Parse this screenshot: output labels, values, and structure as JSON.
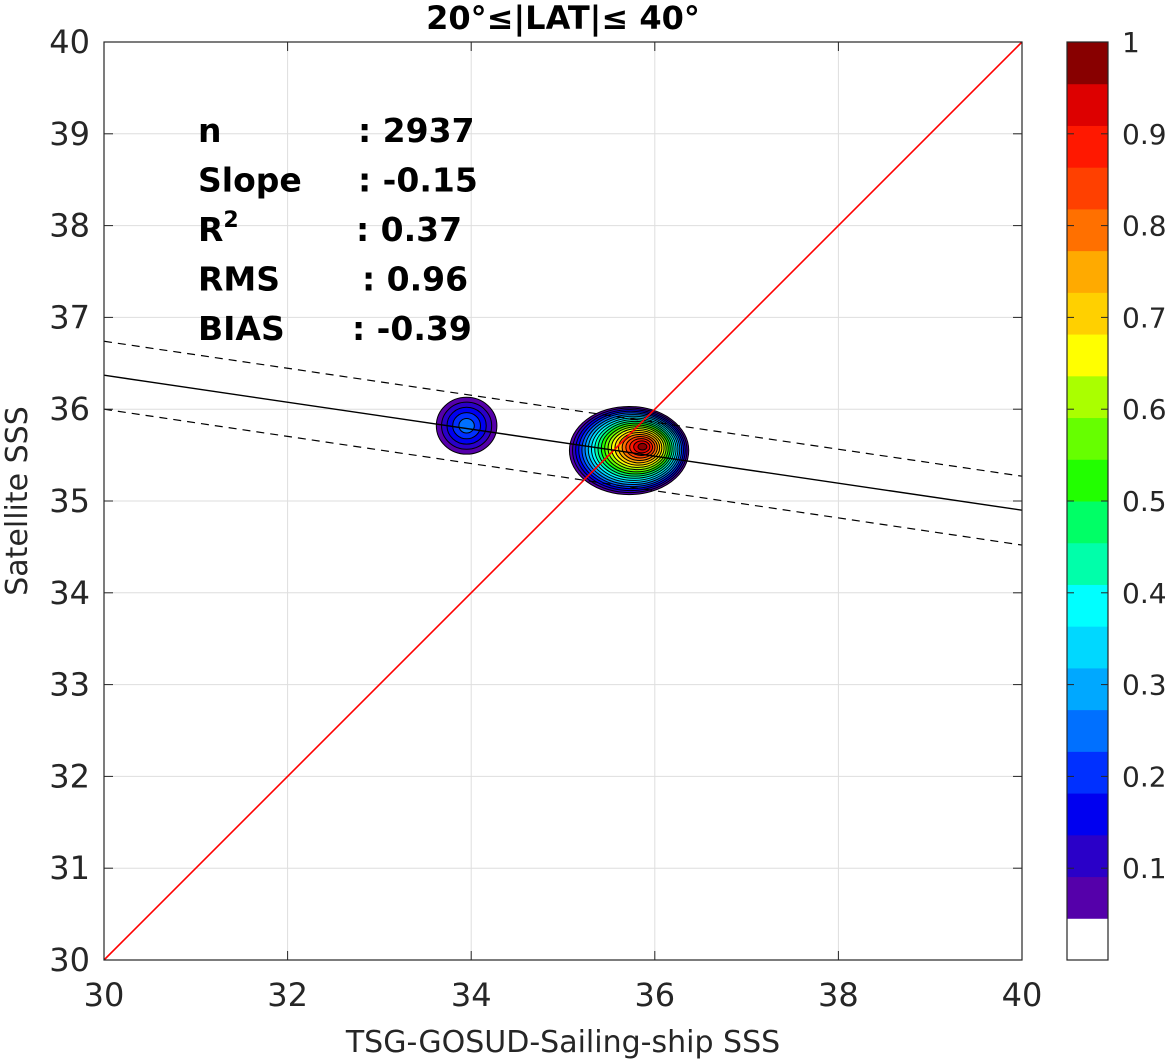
{
  "chart_data": {
    "type": "contour-density-scatter",
    "title": "20°≤|LAT|≤ 40°",
    "xlabel": "TSG-GOSUD-Sailing-ship SSS",
    "ylabel": "Satellite SSS",
    "xlim": [
      30,
      40
    ],
    "ylim": [
      30,
      40
    ],
    "xticks": [
      30,
      32,
      34,
      36,
      38,
      40
    ],
    "yticks": [
      30,
      31,
      32,
      33,
      34,
      35,
      36,
      37,
      38,
      39,
      40
    ],
    "grid": true,
    "stats": [
      {
        "label": "n",
        "value": ": 2937"
      },
      {
        "label": "Slope",
        "value": ": -0.15"
      },
      {
        "label": "R",
        "sup": "2",
        "value": ": 0.37"
      },
      {
        "label": "RMS",
        "value": ": 0.96"
      },
      {
        "label": "BIAS",
        "value": ": -0.39"
      }
    ],
    "identity_line": {
      "from": [
        30,
        30
      ],
      "to": [
        40,
        40
      ],
      "color": "#ff0000"
    },
    "fit_line": {
      "from": [
        30,
        36.37
      ],
      "to": [
        40,
        34.9
      ],
      "color": "#000000"
    },
    "fit_bounds": [
      {
        "from": [
          30,
          36.74
        ],
        "to": [
          40,
          35.27
        ],
        "style": "dashed"
      },
      {
        "from": [
          30,
          36.0
        ],
        "to": [
          40,
          34.52
        ],
        "style": "dashed"
      }
    ],
    "density_clusters": [
      {
        "center": [
          33.95,
          35.82
        ],
        "peak": 0.22,
        "rx": 0.33,
        "ry": 0.31
      },
      {
        "center": [
          35.72,
          35.55
        ],
        "peak": 1.0,
        "rx": 0.65,
        "ry": 0.48
      }
    ],
    "colorbar": {
      "range": [
        0,
        1
      ],
      "ticks": [
        "0.1",
        "0.2",
        "0.3",
        "0.4",
        "0.5",
        "0.6",
        "0.7",
        "0.8",
        "0.9",
        "1"
      ],
      "colors": [
        "#ffffff",
        "#5500aa",
        "#2a00c8",
        "#0000f0",
        "#0030ff",
        "#0070ff",
        "#00a8ff",
        "#00d8ff",
        "#00ffff",
        "#00ffaa",
        "#00ff66",
        "#22ff00",
        "#66ff00",
        "#aaff00",
        "#ffff00",
        "#ffd000",
        "#ffaa00",
        "#ff7000",
        "#ff4000",
        "#ff1800",
        "#dd0000",
        "#880000"
      ]
    }
  }
}
